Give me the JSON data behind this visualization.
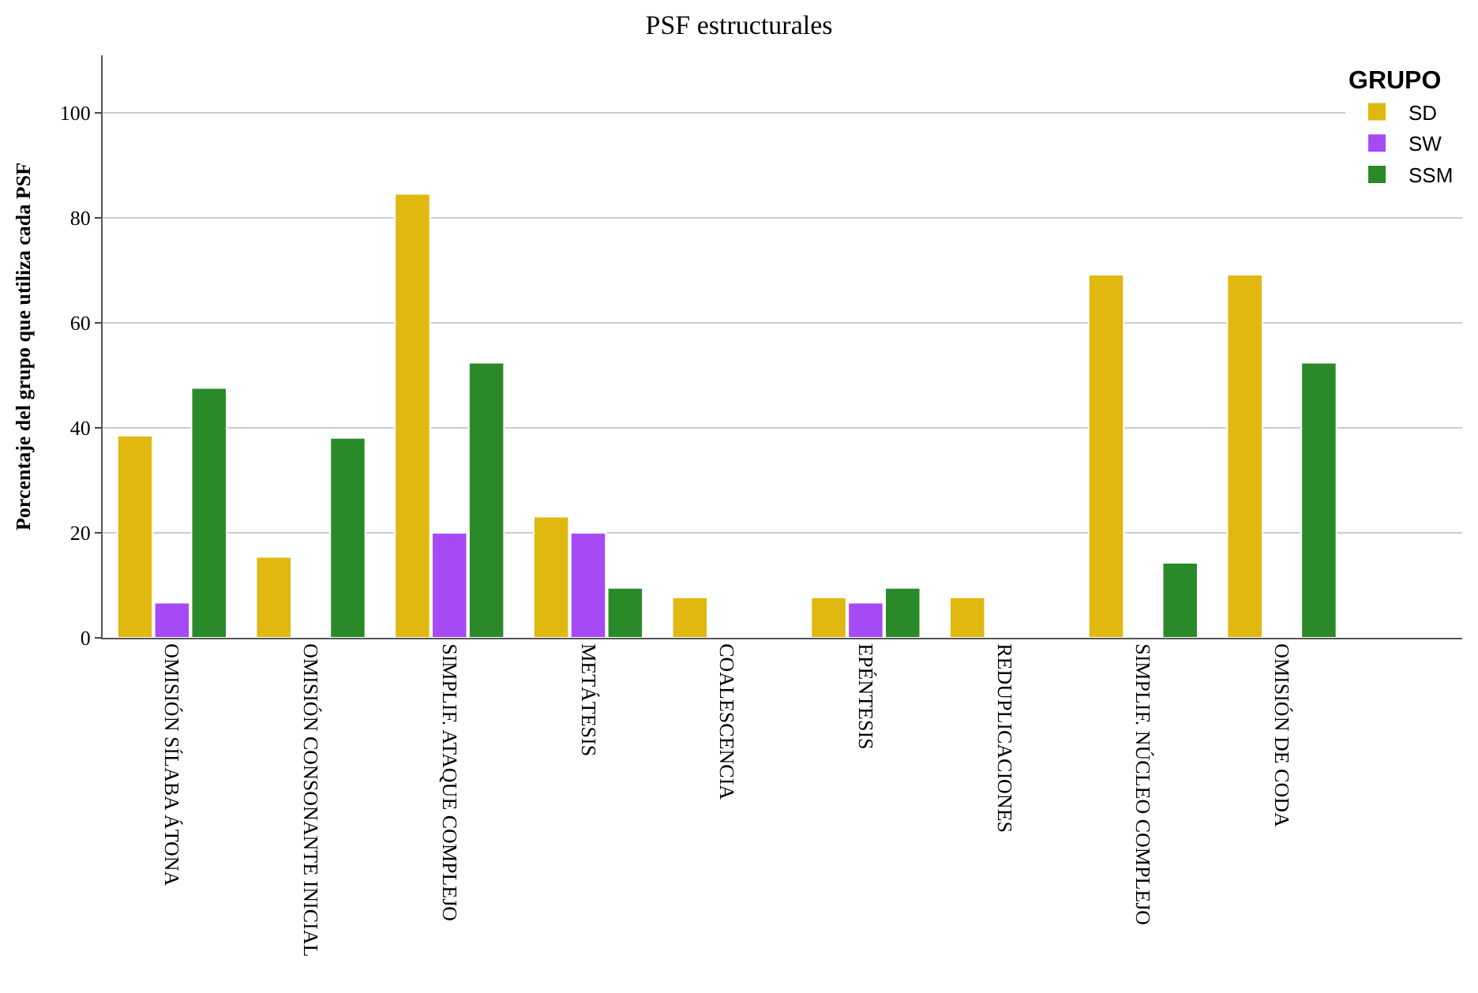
{
  "chart_data": {
    "type": "bar",
    "title": "PSF estructurales",
    "ylabel": "Porcentaje del grupo que utiliza cada PSF",
    "legend_title": "GRUPO",
    "categories": [
      "OMISIÓN SÍLABA ÁTONA",
      "OMISIÓN CONSONANTE INICIAL",
      "SIMPLIF. ATAQUE COMPLEJO",
      "METÁTESIS",
      "COALESCENCIA",
      "EPÉNTESIS",
      "REDUPLICACIONES",
      "SIMPLIF. NÚCLEO COMPLEJO",
      "OMISIÓN DE CODA"
    ],
    "series": [
      {
        "name": "SD",
        "color": "#e0b80f",
        "values": [
          38.5,
          15.4,
          84.6,
          23.1,
          7.7,
          7.7,
          7.7,
          69.2,
          69.2
        ]
      },
      {
        "name": "SW",
        "color": "#a64af5",
        "values": [
          6.7,
          null,
          20,
          20,
          null,
          6.7,
          null,
          null,
          null
        ]
      },
      {
        "name": "SSM",
        "color": "#2a8a2a",
        "values": [
          47.6,
          38.1,
          52.4,
          9.5,
          null,
          9.5,
          null,
          14.3,
          52.4
        ]
      }
    ],
    "ylim": [
      0,
      111
    ],
    "yticks": [
      0,
      20,
      40,
      60,
      80,
      100
    ],
    "grid": "y",
    "legend": "top right"
  }
}
